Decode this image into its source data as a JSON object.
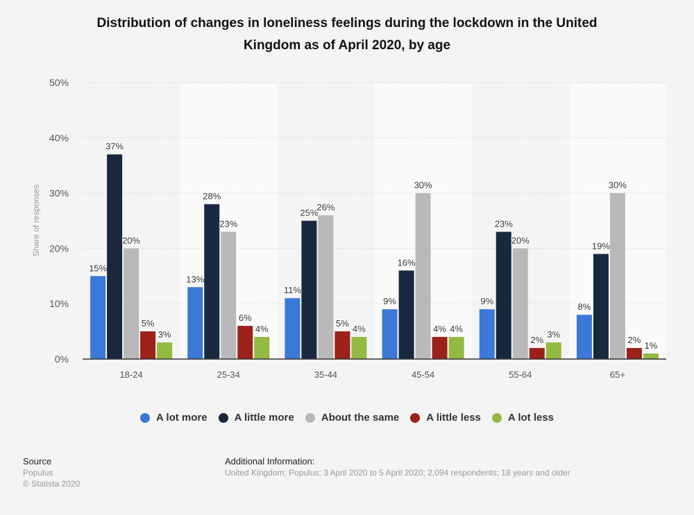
{
  "chart_data": {
    "type": "bar",
    "title": "Distribution of changes in loneliness feelings during the lockdown in the United Kingdom as of April 2020, by age",
    "title_lines": [
      "Distribution of changes in loneliness feelings during the lockdown in the United",
      "Kingdom as of April 2020, by age"
    ],
    "xlabel": "",
    "ylabel": "Share of responses",
    "ylim": [
      0,
      50
    ],
    "yticks": [
      0,
      10,
      20,
      30,
      40,
      50
    ],
    "ytick_labels": [
      "0%",
      "10%",
      "20%",
      "30%",
      "40%",
      "50%"
    ],
    "grid": true,
    "legend_position": "bottom",
    "categories": [
      "18-24",
      "25-34",
      "35-44",
      "45-54",
      "55-64",
      "65+"
    ],
    "series": [
      {
        "name": "A lot more",
        "color": "#3b78d8",
        "values": [
          15,
          13,
          11,
          9,
          9,
          8
        ]
      },
      {
        "name": "A little more",
        "color": "#17283f",
        "values": [
          37,
          28,
          25,
          16,
          23,
          19
        ]
      },
      {
        "name": "About the same",
        "color": "#b9b9b9",
        "values": [
          20,
          23,
          26,
          30,
          20,
          30
        ]
      },
      {
        "name": "A little less",
        "color": "#9b2119",
        "values": [
          5,
          6,
          5,
          4,
          2,
          2
        ]
      },
      {
        "name": "A lot less",
        "color": "#93ba41",
        "values": [
          3,
          4,
          4,
          4,
          3,
          1
        ]
      }
    ],
    "value_suffix": "%"
  },
  "footer": {
    "source_label": "Source",
    "source_value": "Populus",
    "copyright": "© Statista 2020",
    "additional_label": "Additional Information:",
    "additional_value": "United Kingdom; Populus; 3 April 2020 to 5 April 2020; 2,094 respondents; 18 years and older"
  }
}
